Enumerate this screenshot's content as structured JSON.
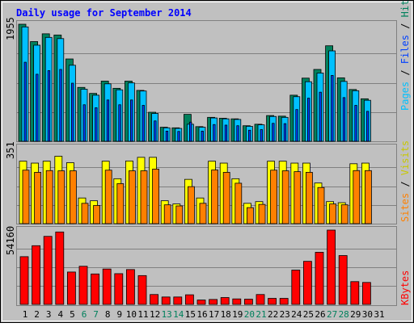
{
  "colors": {
    "background": "#C0C0C0",
    "hits": "#00805C",
    "files": "#0040FF",
    "pages": "#00C0FF",
    "visits": "#FFFF00",
    "sites": "#FF8000",
    "kbytes": "#FF0000",
    "title": "#0000FF",
    "weekday_label": "#000000",
    "weekend_label": "#00805C"
  },
  "chart_data": [
    {
      "type": "bar",
      "title": "Daily usage for September 2014",
      "ylabel_max": "1955",
      "legend": [
        "Pages",
        "Files",
        "Hits"
      ],
      "x": [
        "1",
        "2",
        "3",
        "4",
        "5",
        "6",
        "7",
        "8",
        "9",
        "10",
        "11",
        "12",
        "13",
        "14",
        "15",
        "16",
        "17",
        "18",
        "19",
        "20",
        "21",
        "22",
        "23",
        "24",
        "25",
        "26",
        "27",
        "28",
        "29",
        "30",
        "31"
      ],
      "weekend_days": [
        "6",
        "7",
        "13",
        "14",
        "20",
        "21",
        "27",
        "28"
      ],
      "ylim": [
        0,
        1955
      ],
      "series": [
        {
          "name": "Hits",
          "values": [
            1955,
            1665,
            1795,
            1775,
            1375,
            900,
            800,
            1005,
            885,
            1005,
            850,
            485,
            235,
            225,
            450,
            245,
            400,
            385,
            375,
            260,
            285,
            430,
            420,
            770,
            1055,
            1200,
            1595,
            1060,
            865,
            710,
            0
          ]
        },
        {
          "name": "Files",
          "values": [
            1320,
            1120,
            1180,
            1200,
            970,
            610,
            560,
            690,
            610,
            690,
            600,
            340,
            170,
            165,
            320,
            170,
            280,
            270,
            260,
            185,
            195,
            300,
            295,
            530,
            720,
            820,
            1100,
            730,
            600,
            500,
            0
          ]
        },
        {
          "name": "Pages",
          "values": [
            1910,
            1605,
            1735,
            1715,
            1270,
            870,
            770,
            960,
            860,
            975,
            840,
            465,
            225,
            215,
            285,
            235,
            390,
            375,
            365,
            250,
            275,
            415,
            400,
            745,
            995,
            1140,
            1510,
            1000,
            845,
            685,
            0
          ]
        }
      ]
    },
    {
      "type": "bar",
      "ylabel_max": "351",
      "legend": [
        "Sites",
        "Visits"
      ],
      "ylim": [
        0,
        351
      ],
      "series": [
        {
          "name": "Visits",
          "values": [
            292,
            283,
            292,
            315,
            285,
            120,
            107,
            292,
            210,
            293,
            310,
            310,
            107,
            92,
            207,
            120,
            292,
            283,
            210,
            95,
            103,
            292,
            292,
            283,
            283,
            190,
            103,
            98,
            280,
            283,
            0
          ]
        },
        {
          "name": "Sites",
          "values": [
            250,
            240,
            248,
            247,
            247,
            95,
            85,
            250,
            187,
            247,
            247,
            255,
            88,
            83,
            173,
            95,
            251,
            240,
            189,
            75,
            90,
            250,
            247,
            243,
            240,
            169,
            92,
            88,
            248,
            248,
            0
          ]
        }
      ]
    },
    {
      "type": "bar",
      "ylabel_max": "54160",
      "legend": [
        "KBytes"
      ],
      "ylim": [
        0,
        54160
      ],
      "series": [
        {
          "name": "KBytes",
          "values": [
            34800,
            42800,
            49600,
            52800,
            23600,
            27800,
            22200,
            25800,
            22400,
            25400,
            21000,
            7200,
            5400,
            5400,
            7000,
            3200,
            3600,
            5000,
            4000,
            3800,
            7200,
            4400,
            4400,
            25000,
            31400,
            38000,
            54160,
            35600,
            16600,
            16000,
            0
          ]
        }
      ]
    }
  ]
}
